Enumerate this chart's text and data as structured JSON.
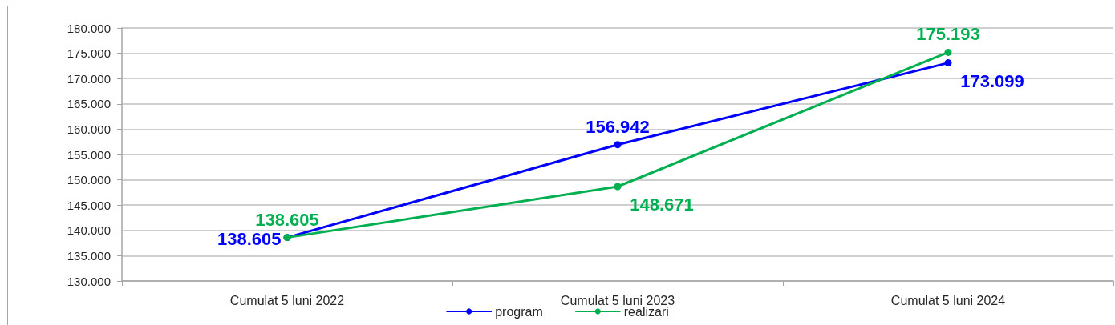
{
  "chart_data": {
    "type": "line",
    "categories": [
      "Cumulat 5 luni 2022",
      "Cumulat 5 luni 2023",
      "Cumulat 5 luni 2024"
    ],
    "series": [
      {
        "name": "program",
        "color": "#0000ff",
        "values": [
          138605,
          156942,
          173099
        ],
        "value_labels": [
          "138.605",
          "156.942",
          "173.099"
        ]
      },
      {
        "name": "realizari",
        "color": "#00b050",
        "values": [
          138605,
          148671,
          175193
        ],
        "value_labels": [
          "138.605",
          "148.671",
          "175.193"
        ]
      }
    ],
    "ylim": [
      130000,
      180000
    ],
    "yticks": [
      {
        "value": 130000,
        "label": "130.000"
      },
      {
        "value": 135000,
        "label": "135.000"
      },
      {
        "value": 140000,
        "label": "140.000"
      },
      {
        "value": 145000,
        "label": "145.000"
      },
      {
        "value": 150000,
        "label": "150.000"
      },
      {
        "value": 155000,
        "label": "155.000"
      },
      {
        "value": 160000,
        "label": "160.000"
      },
      {
        "value": 165000,
        "label": "165.000"
      },
      {
        "value": 170000,
        "label": "170.000"
      },
      {
        "value": 175000,
        "label": "175.000"
      },
      {
        "value": 180000,
        "label": "180.000"
      }
    ],
    "grid": "y",
    "legend": "bottom",
    "marker": "circle",
    "line_style": "solid"
  }
}
